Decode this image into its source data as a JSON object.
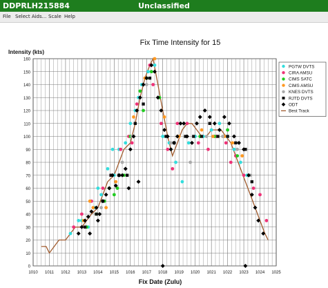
{
  "window": {
    "title": "DDPRLH215884",
    "classification": "Unclassified",
    "accent": "#1e7d1e"
  },
  "menu": [
    {
      "label": "File"
    },
    {
      "label": "Select Aids..."
    },
    {
      "label": "Scale"
    },
    {
      "label": "Help"
    }
  ],
  "chart_data": {
    "type": "scatter",
    "title": "Fix Time Intensity for 15",
    "ylabel": "Intensity (kts)",
    "xlabel": "Fix Date (Zulu)",
    "xlim": [
      1010,
      1025
    ],
    "ylim": [
      0,
      160
    ],
    "xticks": [
      "1010",
      "1011",
      "1012",
      "1013",
      "1014",
      "1015",
      "1016",
      "1017",
      "1018",
      "1019",
      "1020",
      "1021",
      "1022",
      "1023",
      "1024",
      "1025"
    ],
    "yticks": [
      0,
      10,
      20,
      30,
      40,
      50,
      60,
      70,
      80,
      90,
      100,
      110,
      120,
      130,
      140,
      150,
      160
    ],
    "grid": true,
    "legend_position": "right",
    "series": [
      {
        "name": "PGTW DVTS",
        "color": "#33dddd",
        "marker": "dot",
        "points": [
          [
            1012.3,
            25
          ],
          [
            1012.8,
            35
          ],
          [
            1013.4,
            30
          ],
          [
            1013.8,
            45
          ],
          [
            1014.2,
            55
          ],
          [
            1014.6,
            75
          ],
          [
            1014.9,
            90
          ],
          [
            1015.3,
            90
          ],
          [
            1015.7,
            95
          ],
          [
            1016.3,
            120
          ],
          [
            1016.7,
            140
          ],
          [
            1017.1,
            150
          ],
          [
            1017.5,
            155
          ],
          [
            1018.0,
            100
          ],
          [
            1018.4,
            95
          ],
          [
            1018.8,
            80
          ],
          [
            1019.2,
            65
          ],
          [
            1019.6,
            95
          ],
          [
            1020.0,
            100
          ],
          [
            1020.5,
            100
          ],
          [
            1021.0,
            105
          ],
          [
            1021.5,
            110
          ],
          [
            1022.0,
            100
          ],
          [
            1022.4,
            90
          ],
          [
            1022.8,
            80
          ],
          [
            1023.2,
            70
          ],
          [
            1013.0,
            35
          ],
          [
            1014.0,
            60
          ],
          [
            1015.0,
            70
          ],
          [
            1016.0,
            110
          ],
          [
            1016.5,
            130
          ]
        ]
      },
      {
        "name": "CIRA AMSU",
        "color": "#ee3377",
        "marker": "dot",
        "points": [
          [
            1012.5,
            30
          ],
          [
            1013.0,
            40
          ],
          [
            1013.6,
            50
          ],
          [
            1014.3,
            60
          ],
          [
            1014.8,
            70
          ],
          [
            1015.4,
            90
          ],
          [
            1015.9,
            100
          ],
          [
            1016.4,
            125
          ],
          [
            1016.9,
            145
          ],
          [
            1017.4,
            140
          ],
          [
            1017.9,
            110
          ],
          [
            1018.3,
            90
          ],
          [
            1018.9,
            110
          ],
          [
            1019.5,
            110
          ],
          [
            1020.2,
            95
          ],
          [
            1020.8,
            90
          ],
          [
            1021.3,
            100
          ],
          [
            1021.9,
            95
          ],
          [
            1022.5,
            85
          ],
          [
            1023.0,
            70
          ],
          [
            1023.6,
            60
          ],
          [
            1024.0,
            55
          ],
          [
            1024.4,
            35
          ],
          [
            1016.1,
            95
          ],
          [
            1017.2,
            155
          ],
          [
            1018.6,
            75
          ],
          [
            1022.2,
            80
          ]
        ]
      },
      {
        "name": "CIMS SATC",
        "color": "#22cc22",
        "marker": "dot",
        "points": [
          [
            1013.3,
            30
          ],
          [
            1013.9,
            40
          ],
          [
            1014.4,
            50
          ],
          [
            1014.7,
            60
          ],
          [
            1015.2,
            60
          ],
          [
            1015.6,
            70
          ],
          [
            1016.0,
            100
          ],
          [
            1016.6,
            135
          ],
          [
            1017.0,
            145
          ],
          [
            1017.3,
            150
          ],
          [
            1017.8,
            130
          ],
          [
            1020.3,
            100
          ],
          [
            1021.2,
            100
          ],
          [
            1022.0,
            105
          ],
          [
            1022.6,
            85
          ],
          [
            1015.0,
            55
          ],
          [
            1016.8,
            120
          ]
        ]
      },
      {
        "name": "CIMS AMSU",
        "color": "#ff9922",
        "marker": "dot",
        "points": [
          [
            1013.1,
            35
          ],
          [
            1013.7,
            45
          ],
          [
            1014.5,
            45
          ],
          [
            1015.1,
            65
          ],
          [
            1016.2,
            115
          ],
          [
            1016.9,
            145
          ],
          [
            1017.5,
            160
          ],
          [
            1018.1,
            115
          ],
          [
            1019.0,
            100
          ],
          [
            1020.4,
            105
          ],
          [
            1021.1,
            100
          ],
          [
            1021.8,
            100
          ],
          [
            1022.3,
            95
          ],
          [
            1022.9,
            85
          ],
          [
            1013.5,
            50
          ]
        ]
      },
      {
        "name": "KNES DVTS",
        "color": "#aaaaaa",
        "marker": "dot",
        "points": [
          [
            1014.2,
            45
          ],
          [
            1015.5,
            80
          ],
          [
            1016.1,
            100
          ],
          [
            1017.0,
            140
          ],
          [
            1018.5,
            95
          ],
          [
            1019.7,
            80
          ],
          [
            1020.7,
            100
          ],
          [
            1021.7,
            100
          ],
          [
            1022.6,
            90
          ],
          [
            1023.4,
            70
          ]
        ]
      },
      {
        "name": "RJTD DVTS",
        "color": "#111111",
        "marker": "square",
        "points": [
          [
            1013.2,
            30
          ],
          [
            1013.9,
            40
          ],
          [
            1014.3,
            50
          ],
          [
            1014.8,
            70
          ],
          [
            1015.3,
            70
          ],
          [
            1015.8,
            70
          ],
          [
            1016.3,
            110
          ],
          [
            1016.8,
            125
          ],
          [
            1017.2,
            145
          ],
          [
            1018.2,
            100
          ],
          [
            1018.7,
            95
          ],
          [
            1019.4,
            100
          ],
          [
            1019.9,
            100
          ],
          [
            1020.4,
            100
          ],
          [
            1020.9,
            110
          ],
          [
            1021.4,
            100
          ],
          [
            1022.0,
            100
          ],
          [
            1022.5,
            95
          ],
          [
            1023.1,
            90
          ],
          [
            1023.5,
            65
          ]
        ]
      },
      {
        "name": "ODT",
        "color": "#000000",
        "marker": "diamond",
        "points": [
          [
            1012.8,
            25
          ],
          [
            1013.0,
            30
          ],
          [
            1013.2,
            35
          ],
          [
            1013.4,
            38
          ],
          [
            1013.6,
            42
          ],
          [
            1013.9,
            45
          ],
          [
            1014.1,
            40
          ],
          [
            1014.3,
            50
          ],
          [
            1014.5,
            55
          ],
          [
            1014.7,
            60
          ],
          [
            1014.9,
            70
          ],
          [
            1015.1,
            62
          ],
          [
            1015.3,
            70
          ],
          [
            1015.5,
            70
          ],
          [
            1015.7,
            75
          ],
          [
            1016.0,
            90
          ],
          [
            1016.2,
            100
          ],
          [
            1016.4,
            120
          ],
          [
            1016.6,
            130
          ],
          [
            1016.8,
            140
          ],
          [
            1017.0,
            145
          ],
          [
            1017.3,
            155
          ],
          [
            1017.5,
            150
          ],
          [
            1017.7,
            130
          ],
          [
            1017.9,
            120
          ],
          [
            1018.0,
            0
          ],
          [
            1018.1,
            105
          ],
          [
            1018.3,
            100
          ],
          [
            1018.5,
            90
          ],
          [
            1018.7,
            95
          ],
          [
            1018.9,
            100
          ],
          [
            1019.1,
            110
          ],
          [
            1019.3,
            110
          ],
          [
            1019.5,
            100
          ],
          [
            1019.8,
            95
          ],
          [
            1020.1,
            110
          ],
          [
            1020.3,
            115
          ],
          [
            1020.6,
            120
          ],
          [
            1020.9,
            115
          ],
          [
            1021.2,
            110
          ],
          [
            1021.5,
            105
          ],
          [
            1021.8,
            115
          ],
          [
            1022.1,
            110
          ],
          [
            1022.4,
            100
          ],
          [
            1022.7,
            95
          ],
          [
            1023.0,
            90
          ],
          [
            1023.1,
            0
          ],
          [
            1023.3,
            70
          ],
          [
            1023.5,
            55
          ],
          [
            1023.7,
            45
          ],
          [
            1023.9,
            35
          ],
          [
            1024.2,
            25
          ],
          [
            1015.9,
            60
          ],
          [
            1014.0,
            35
          ],
          [
            1016.5,
            65
          ],
          [
            1013.5,
            25
          ]
        ]
      },
      {
        "name": "Best Track",
        "color": "#a05a2c",
        "marker": "line",
        "points": [
          [
            1010.5,
            15
          ],
          [
            1010.8,
            15
          ],
          [
            1011.0,
            10
          ],
          [
            1011.3,
            15
          ],
          [
            1011.6,
            20
          ],
          [
            1012.0,
            20
          ],
          [
            1012.3,
            25
          ],
          [
            1012.6,
            30
          ],
          [
            1013.0,
            30
          ],
          [
            1013.3,
            35
          ],
          [
            1013.6,
            40
          ],
          [
            1014.0,
            45
          ],
          [
            1014.3,
            55
          ],
          [
            1014.6,
            65
          ],
          [
            1015.0,
            70
          ],
          [
            1015.3,
            80
          ],
          [
            1015.6,
            90
          ],
          [
            1016.0,
            95
          ],
          [
            1016.3,
            110
          ],
          [
            1016.6,
            130
          ],
          [
            1016.9,
            145
          ],
          [
            1017.2,
            155
          ],
          [
            1017.4,
            160
          ],
          [
            1017.7,
            140
          ],
          [
            1018.0,
            120
          ],
          [
            1018.3,
            100
          ],
          [
            1018.6,
            85
          ],
          [
            1018.9,
            95
          ],
          [
            1019.2,
            105
          ],
          [
            1019.5,
            110
          ],
          [
            1019.8,
            110
          ],
          [
            1020.1,
            105
          ],
          [
            1020.4,
            100
          ],
          [
            1020.7,
            100
          ],
          [
            1021.0,
            105
          ],
          [
            1021.3,
            105
          ],
          [
            1021.6,
            105
          ],
          [
            1021.9,
            100
          ],
          [
            1022.2,
            95
          ],
          [
            1022.5,
            85
          ],
          [
            1022.8,
            75
          ],
          [
            1023.1,
            65
          ],
          [
            1023.4,
            55
          ],
          [
            1023.7,
            45
          ],
          [
            1024.0,
            35
          ],
          [
            1024.3,
            25
          ],
          [
            1024.5,
            20
          ]
        ]
      }
    ]
  }
}
